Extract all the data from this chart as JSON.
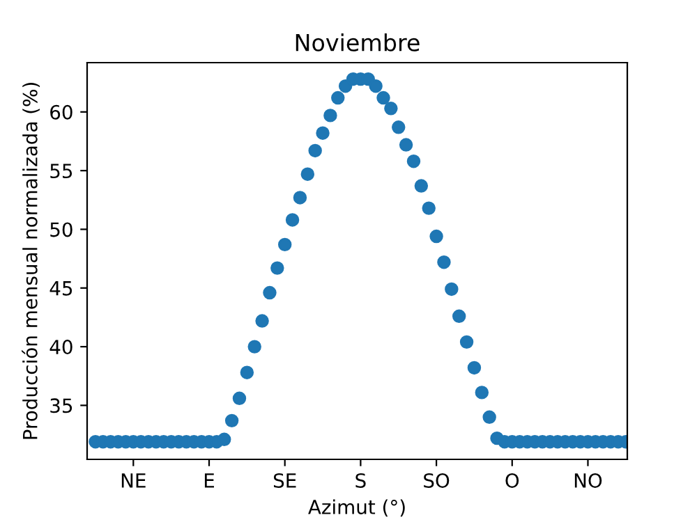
{
  "chart_data": {
    "type": "scatter",
    "title": "Noviembre",
    "xlabel": "Azimut (°)",
    "ylabel": "Producción mensual normalizada (%)",
    "categories": [
      null,
      null,
      null,
      null,
      null,
      "NE",
      null,
      null,
      null,
      null,
      null,
      null,
      null,
      null,
      null,
      "E",
      null,
      null,
      null,
      null,
      null,
      null,
      null,
      null,
      null,
      "SE",
      null,
      null,
      null,
      null,
      null,
      null,
      null,
      null,
      null,
      "S",
      null,
      null,
      null,
      null,
      null,
      null,
      null,
      null,
      null,
      "SO",
      null,
      null,
      null,
      null,
      null,
      null,
      null,
      null,
      null,
      "O",
      null,
      null,
      null,
      null,
      null,
      null,
      null,
      null,
      null,
      "NO",
      null,
      null,
      null,
      null,
      null
    ],
    "series": [
      {
        "color": "#1f77b4",
        "values": [
          31.9,
          31.9,
          31.9,
          31.9,
          31.9,
          31.9,
          31.9,
          31.9,
          31.9,
          31.9,
          31.9,
          31.9,
          31.9,
          31.9,
          31.9,
          31.9,
          31.9,
          32.1,
          33.7,
          35.6,
          37.8,
          40.0,
          42.2,
          44.6,
          46.7,
          48.7,
          50.8,
          52.7,
          54.7,
          56.7,
          58.2,
          59.7,
          61.2,
          62.2,
          62.8,
          62.8,
          62.8,
          62.2,
          61.2,
          60.3,
          58.7,
          57.2,
          55.8,
          53.7,
          51.8,
          49.4,
          47.2,
          44.9,
          42.6,
          40.4,
          38.2,
          36.1,
          34.0,
          32.2,
          31.9,
          31.9,
          31.9,
          31.9,
          31.9,
          31.9,
          31.9,
          31.9,
          31.9,
          31.9,
          31.9,
          31.9,
          31.9,
          31.9,
          31.9,
          31.9,
          31.9
        ]
      }
    ],
    "ylim": [
      30.4,
      64.2
    ],
    "yticks": [
      35,
      40,
      45,
      50,
      55,
      60
    ],
    "marker": "circle",
    "grid": false,
    "legend": false
  }
}
